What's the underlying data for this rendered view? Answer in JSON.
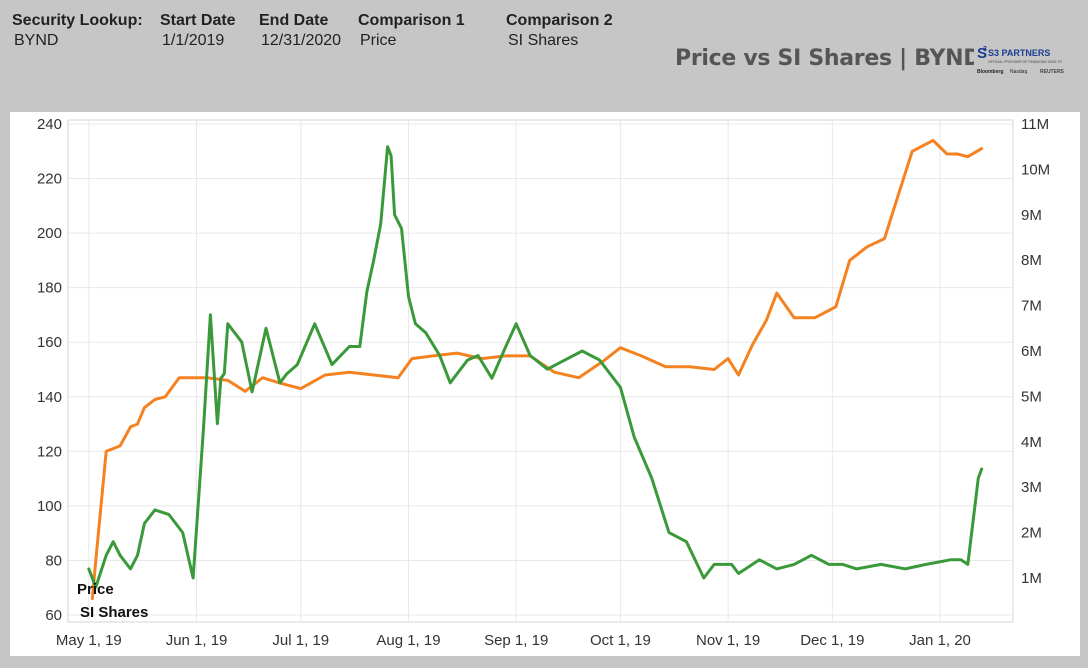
{
  "header": {
    "security_label": "Security Lookup:",
    "security_value": "BYND",
    "start_label": "Start Date",
    "start_value": "1/1/2019",
    "end_label": "End Date",
    "end_value": "12/31/2020",
    "comp1_label": "Comparison 1",
    "comp1_value": "Price",
    "comp2_label": "Comparison 2",
    "comp2_value": "SI Shares"
  },
  "title": "Price vs SI Shares | BYND",
  "logo": {
    "icon": "s3-partners-logo",
    "brand": "S3 PARTNERS",
    "tagline": "OFFICIAL PROVIDER OF FINANCING DATA TO",
    "partners": [
      "Bloomberg",
      "Nasdaq",
      "REUTERS"
    ]
  },
  "colors": {
    "price": "#f58220",
    "si": "#3a9a3a",
    "background": "#c6c6c6",
    "panel": "#ffffff",
    "grid": "#e8e8e8"
  },
  "chart_data": {
    "type": "line",
    "title": "Price vs SI Shares | BYND",
    "x_ticks": [
      "May 1, 19",
      "Jun 1, 19",
      "Jul 1, 19",
      "Aug 1, 19",
      "Sep 1, 19",
      "Oct 1, 19",
      "Nov 1, 19",
      "Dec 1, 19",
      "Jan 1, 20"
    ],
    "y_left": {
      "ticks": [
        60,
        80,
        100,
        120,
        140,
        160,
        180,
        200,
        220,
        240
      ],
      "range": [
        60,
        240
      ]
    },
    "y_right": {
      "ticks": [
        "1M",
        "2M",
        "3M",
        "4M",
        "5M",
        "6M",
        "7M",
        "8M",
        "9M",
        "10M",
        "11M"
      ],
      "range": [
        1000000,
        11000000
      ]
    },
    "grid": true,
    "series": [
      {
        "name": "Price",
        "axis": "left",
        "x": [
          "2019-05-02",
          "2019-05-03",
          "2019-05-06",
          "2019-05-08",
          "2019-05-10",
          "2019-05-13",
          "2019-05-15",
          "2019-05-17",
          "2019-05-20",
          "2019-05-23",
          "2019-05-27",
          "2019-05-31",
          "2019-06-04",
          "2019-06-10",
          "2019-06-15",
          "2019-06-20",
          "2019-06-25",
          "2019-07-01",
          "2019-07-08",
          "2019-07-15",
          "2019-07-22",
          "2019-07-29",
          "2019-08-02",
          "2019-08-08",
          "2019-08-15",
          "2019-08-22",
          "2019-08-29",
          "2019-09-05",
          "2019-09-12",
          "2019-09-19",
          "2019-09-26",
          "2019-10-01",
          "2019-10-07",
          "2019-10-14",
          "2019-10-21",
          "2019-10-28",
          "2019-11-01",
          "2019-11-04",
          "2019-11-08",
          "2019-11-12",
          "2019-11-15",
          "2019-11-20",
          "2019-11-26",
          "2019-12-02",
          "2019-12-06",
          "2019-12-11",
          "2019-12-16",
          "2019-12-20",
          "2019-12-24",
          "2019-12-30",
          "2020-01-03",
          "2020-01-06",
          "2020-01-09",
          "2020-01-13"
        ],
        "values": [
          66,
          80,
          120,
          121,
          122,
          129,
          130,
          136,
          139,
          140,
          147,
          147,
          147,
          146,
          142,
          147,
          145,
          143,
          148,
          149,
          148,
          147,
          154,
          155,
          156,
          154,
          155,
          155,
          149,
          147,
          153,
          158,
          155,
          151,
          151,
          150,
          154,
          148,
          159,
          168,
          178,
          169,
          169,
          173,
          190,
          195,
          198,
          214,
          230,
          234,
          229,
          229,
          228,
          231
        ]
      },
      {
        "name": "SI Shares",
        "axis": "right",
        "x": [
          "2019-05-01",
          "2019-05-03",
          "2019-05-06",
          "2019-05-08",
          "2019-05-10",
          "2019-05-13",
          "2019-05-15",
          "2019-05-17",
          "2019-05-20",
          "2019-05-24",
          "2019-05-28",
          "2019-05-31",
          "2019-06-03",
          "2019-06-05",
          "2019-06-07",
          "2019-06-08",
          "2019-06-09",
          "2019-06-10",
          "2019-06-14",
          "2019-06-17",
          "2019-06-21",
          "2019-06-25",
          "2019-06-27",
          "2019-06-30",
          "2019-07-05",
          "2019-07-10",
          "2019-07-15",
          "2019-07-18",
          "2019-07-20",
          "2019-07-22",
          "2019-07-24",
          "2019-07-26",
          "2019-07-27",
          "2019-07-28",
          "2019-07-30",
          "2019-08-01",
          "2019-08-03",
          "2019-08-06",
          "2019-08-10",
          "2019-08-13",
          "2019-08-18",
          "2019-08-21",
          "2019-08-25",
          "2019-08-29",
          "2019-09-01",
          "2019-09-05",
          "2019-09-10",
          "2019-09-15",
          "2019-09-20",
          "2019-09-25",
          "2019-10-01",
          "2019-10-05",
          "2019-10-10",
          "2019-10-15",
          "2019-10-20",
          "2019-10-25",
          "2019-10-28",
          "2019-11-02",
          "2019-11-04",
          "2019-11-10",
          "2019-11-15",
          "2019-11-20",
          "2019-11-25",
          "2019-11-30",
          "2019-12-04",
          "2019-12-08",
          "2019-12-15",
          "2019-12-22",
          "2019-12-28",
          "2020-01-04",
          "2020-01-07",
          "2020-01-09",
          "2020-01-12",
          "2020-01-13"
        ],
        "values": [
          1200000,
          800000,
          1500000,
          1800000,
          1500000,
          1200000,
          1500000,
          2200000,
          2500000,
          2400000,
          2000000,
          1000000,
          4300000,
          6800000,
          4400000,
          5400000,
          5500000,
          6600000,
          6200000,
          5100000,
          6500000,
          5300000,
          5500000,
          5700000,
          6600000,
          5700000,
          6100000,
          6100000,
          7300000,
          8000000,
          8800000,
          10500000,
          10300000,
          9000000,
          8700000,
          7200000,
          6600000,
          6400000,
          5900000,
          5300000,
          5800000,
          5900000,
          5400000,
          6100000,
          6600000,
          5900000,
          5600000,
          5800000,
          6000000,
          5800000,
          5200000,
          4100000,
          3200000,
          2000000,
          1800000,
          1000000,
          1300000,
          1300000,
          1100000,
          1400000,
          1200000,
          1300000,
          1500000,
          1300000,
          1300000,
          1200000,
          1300000,
          1200000,
          1300000,
          1400000,
          1400000,
          1300000,
          3200000,
          3400000
        ]
      }
    ]
  }
}
